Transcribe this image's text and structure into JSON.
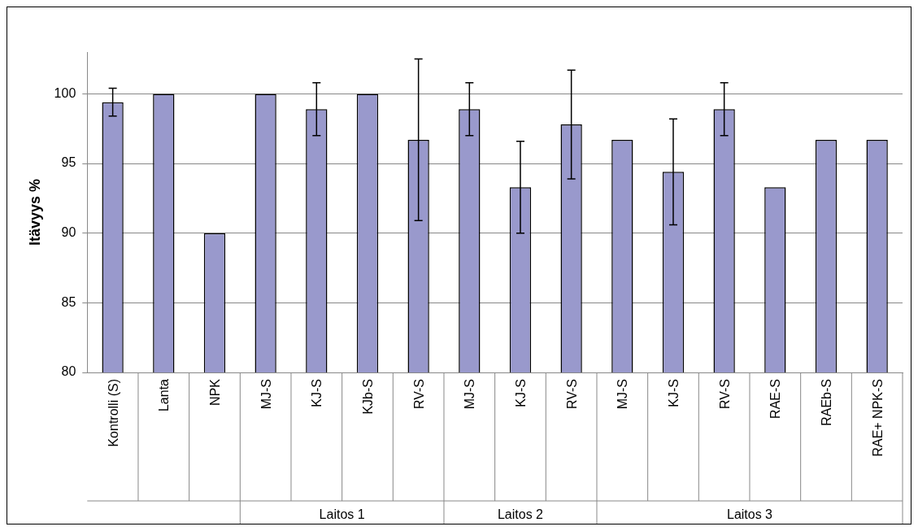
{
  "chart_data": {
    "type": "bar",
    "ylabel": "Itävyys %",
    "categories": [
      "Kontrolli (S)",
      "Lanta",
      "NPK",
      "MJ-S",
      "KJ-S",
      "KJb-S",
      "RV-S",
      "MJ-S",
      "KJ-S",
      "RV-S",
      "MJ-S",
      "KJ-S",
      "RV-S",
      "RAE-S",
      "RAEb-S",
      "RAE+ NPK-S"
    ],
    "values": [
      99.4,
      100,
      90,
      100,
      98.9,
      100,
      96.7,
      98.9,
      93.3,
      97.8,
      96.7,
      94.4,
      98.9,
      93.3,
      96.7,
      96.7
    ],
    "errors": [
      1,
      null,
      null,
      null,
      1.9,
      null,
      5.8,
      1.9,
      3.3,
      3.9,
      null,
      3.8,
      1.9,
      null,
      null,
      null
    ],
    "color": "#9999cc",
    "ylim": [
      80,
      103
    ],
    "yticks": [
      80,
      85,
      90,
      95,
      100
    ],
    "grid": "y",
    "legend": false,
    "annotations": [
      "Laitos 1",
      "Laitos 2",
      "Laitos 3"
    ]
  }
}
